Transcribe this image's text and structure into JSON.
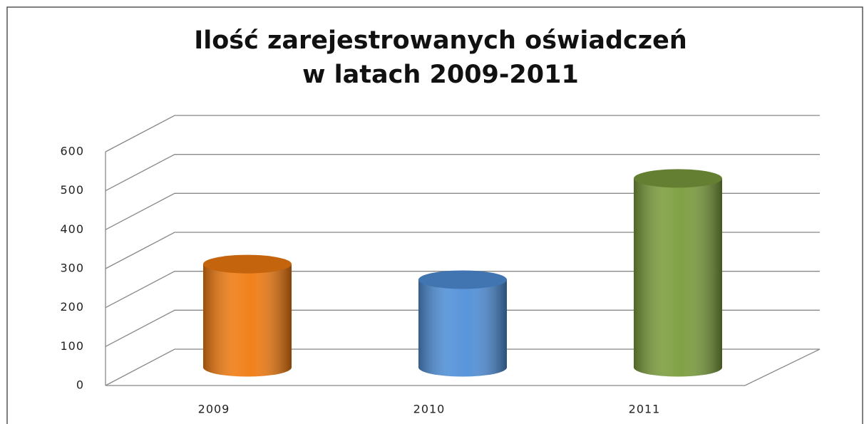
{
  "chart_data": {
    "type": "bar3d",
    "title": [
      "Ilość  zarejestrowanych oświadczeń",
      "w latach 2009-2011"
    ],
    "categories": [
      "2009",
      "2010",
      "2011"
    ],
    "values": [
      265,
      225,
      485
    ],
    "colors": [
      "#f07a10",
      "#4f8fd8",
      "#7a9c3c"
    ],
    "ylim": [
      0,
      600
    ],
    "yticks": [
      0,
      100,
      200,
      300,
      400,
      500,
      600
    ],
    "grid": true
  }
}
